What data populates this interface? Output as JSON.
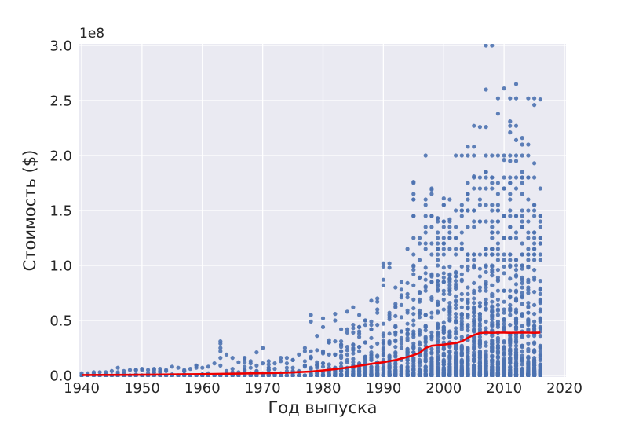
{
  "figure": {
    "background_color": "#ffffff",
    "axes_background_color": "#eaeaf2",
    "grid_color": "#ffffff",
    "text_color": "#262626"
  },
  "chart_data": {
    "type": "scatter",
    "title": "",
    "xlabel": "Год выпуска",
    "ylabel": "Стоимость ($)",
    "y_offset_label": "1e8",
    "xlim": [
      1939.6,
      2020.3
    ],
    "ylim_1e8": [
      0.0,
      3.0
    ],
    "xticks": [
      "1940",
      "1950",
      "1960",
      "1970",
      "1980",
      "1990",
      "2000",
      "2010",
      "2020"
    ],
    "ytick_labels_1e8": [
      "0.0",
      "0.5",
      "1.0",
      "1.5",
      "2.0",
      "2.5",
      "3.0"
    ],
    "grid": true,
    "legend": "none",
    "point_color": "#4c72b0",
    "line_color": "#ee0000",
    "marker_radius_px": 2.6,
    "density_exponent": 8,
    "scatter_columns_year_count_max1e8": [
      [
        1940,
        6,
        0.02
      ],
      [
        1941,
        5,
        0.02
      ],
      [
        1942,
        6,
        0.03
      ],
      [
        1943,
        7,
        0.03
      ],
      [
        1944,
        6,
        0.03
      ],
      [
        1945,
        5,
        0.04
      ],
      [
        1946,
        8,
        0.07
      ],
      [
        1947,
        7,
        0.04
      ],
      [
        1948,
        8,
        0.05
      ],
      [
        1949,
        8,
        0.05
      ],
      [
        1950,
        9,
        0.06
      ],
      [
        1951,
        8,
        0.05
      ],
      [
        1952,
        8,
        0.06
      ],
      [
        1953,
        10,
        0.06
      ],
      [
        1954,
        8,
        0.05
      ],
      [
        1955,
        10,
        0.08
      ],
      [
        1956,
        9,
        0.07
      ],
      [
        1957,
        8,
        0.05
      ],
      [
        1958,
        8,
        0.06
      ],
      [
        1959,
        10,
        0.09
      ],
      [
        1960,
        10,
        0.07
      ],
      [
        1961,
        11,
        0.08
      ],
      [
        1962,
        12,
        0.11
      ],
      [
        1963,
        14,
        0.31
      ],
      [
        1964,
        13,
        0.19
      ],
      [
        1965,
        12,
        0.16
      ],
      [
        1966,
        12,
        0.12
      ],
      [
        1967,
        13,
        0.16
      ],
      [
        1968,
        13,
        0.13
      ],
      [
        1969,
        14,
        0.21
      ],
      [
        1970,
        14,
        0.25
      ],
      [
        1971,
        13,
        0.13
      ],
      [
        1972,
        13,
        0.11
      ],
      [
        1973,
        14,
        0.16
      ],
      [
        1974,
        14,
        0.16
      ],
      [
        1975,
        14,
        0.14
      ],
      [
        1976,
        16,
        0.19
      ],
      [
        1977,
        17,
        0.25
      ],
      [
        1978,
        20,
        0.55
      ],
      [
        1979,
        20,
        0.36
      ],
      [
        1980,
        28,
        0.52
      ],
      [
        1981,
        30,
        0.32
      ],
      [
        1982,
        34,
        0.56
      ],
      [
        1983,
        36,
        0.42
      ],
      [
        1984,
        40,
        0.58
      ],
      [
        1985,
        45,
        0.62
      ],
      [
        1986,
        48,
        0.55
      ],
      [
        1987,
        52,
        0.5
      ],
      [
        1988,
        58,
        0.68
      ],
      [
        1989,
        62,
        0.7
      ],
      [
        1990,
        70,
        1.02
      ],
      [
        1991,
        75,
        1.02
      ],
      [
        1992,
        80,
        0.8
      ],
      [
        1993,
        88,
        0.85
      ],
      [
        1994,
        95,
        1.15
      ],
      [
        1995,
        105,
        1.76
      ],
      [
        1996,
        115,
        1.25
      ],
      [
        1997,
        125,
        1.6
      ],
      [
        1998,
        130,
        1.7
      ],
      [
        1999,
        135,
        1.43
      ],
      [
        2000,
        140,
        1.61
      ],
      [
        2001,
        145,
        1.42
      ],
      [
        2002,
        150,
        1.5
      ],
      [
        2003,
        150,
        1.55
      ],
      [
        2004,
        155,
        1.65
      ],
      [
        2005,
        155,
        1.81
      ],
      [
        2006,
        160,
        1.8
      ],
      [
        2007,
        160,
        1.85
      ],
      [
        2008,
        160,
        1.8
      ],
      [
        2009,
        160,
        1.75
      ],
      [
        2010,
        165,
        1.8
      ],
      [
        2011,
        165,
        1.8
      ],
      [
        2012,
        165,
        1.8
      ],
      [
        2013,
        165,
        1.85
      ],
      [
        2014,
        165,
        1.8
      ],
      [
        2015,
        165,
        1.8
      ],
      [
        2016,
        150,
        1.7
      ]
    ],
    "outlier_points_year_value1e8": [
      [
        1963,
        0.29
      ],
      [
        1963,
        0.25
      ],
      [
        1963,
        0.22
      ],
      [
        1995,
        1.75
      ],
      [
        1997,
        2.0
      ],
      [
        1998,
        1.69
      ],
      [
        1999,
        1.43
      ],
      [
        2001,
        1.6
      ],
      [
        2002,
        2.0
      ],
      [
        2003,
        2.0
      ],
      [
        2003,
        1.5
      ],
      [
        2004,
        2.0
      ],
      [
        2004,
        2.08
      ],
      [
        2004,
        1.75
      ],
      [
        2004,
        1.65
      ],
      [
        2005,
        2.27
      ],
      [
        2005,
        2.08
      ],
      [
        2005,
        2.0
      ],
      [
        2005,
        1.5
      ],
      [
        2006,
        2.26
      ],
      [
        2007,
        3.0
      ],
      [
        2007,
        2.6
      ],
      [
        2007,
        2.26
      ],
      [
        2007,
        2.0
      ],
      [
        2008,
        3.0
      ],
      [
        2008,
        2.0
      ],
      [
        2009,
        2.52
      ],
      [
        2009,
        2.38
      ],
      [
        2009,
        2.0
      ],
      [
        2010,
        2.61
      ],
      [
        2010,
        2.0
      ],
      [
        2010,
        1.96
      ],
      [
        2011,
        2.52
      ],
      [
        2011,
        2.31
      ],
      [
        2011,
        2.27
      ],
      [
        2011,
        2.21
      ],
      [
        2011,
        2.0
      ],
      [
        2011,
        1.95
      ],
      [
        2012,
        2.65
      ],
      [
        2012,
        2.52
      ],
      [
        2012,
        2.27
      ],
      [
        2012,
        2.14
      ],
      [
        2012,
        2.0
      ],
      [
        2012,
        1.95
      ],
      [
        2013,
        2.16
      ],
      [
        2013,
        2.1
      ],
      [
        2013,
        2.0
      ],
      [
        2014,
        2.52
      ],
      [
        2014,
        2.1
      ],
      [
        2014,
        2.0
      ],
      [
        2015,
        2.52
      ],
      [
        2015,
        2.46
      ],
      [
        2015,
        1.93
      ],
      [
        2016,
        2.51
      ]
    ],
    "mean_line_year_value1e8": [
      [
        1940,
        0.004
      ],
      [
        1944,
        0.005
      ],
      [
        1948,
        0.006
      ],
      [
        1952,
        0.008
      ],
      [
        1956,
        0.01
      ],
      [
        1960,
        0.012
      ],
      [
        1964,
        0.016
      ],
      [
        1968,
        0.019
      ],
      [
        1970,
        0.021
      ],
      [
        1972,
        0.023
      ],
      [
        1974,
        0.026
      ],
      [
        1976,
        0.031
      ],
      [
        1978,
        0.036
      ],
      [
        1980,
        0.046
      ],
      [
        1982,
        0.057
      ],
      [
        1984,
        0.071
      ],
      [
        1986,
        0.088
      ],
      [
        1988,
        0.106
      ],
      [
        1990,
        0.12
      ],
      [
        1992,
        0.14
      ],
      [
        1994,
        0.168
      ],
      [
        1995,
        0.185
      ],
      [
        1996,
        0.205
      ],
      [
        1997,
        0.25
      ],
      [
        1998,
        0.27
      ],
      [
        1999,
        0.276
      ],
      [
        2000,
        0.281
      ],
      [
        2001,
        0.288
      ],
      [
        2002,
        0.295
      ],
      [
        2003,
        0.31
      ],
      [
        2004,
        0.343
      ],
      [
        2005,
        0.368
      ],
      [
        2006,
        0.386
      ],
      [
        2007,
        0.39
      ],
      [
        2008,
        0.388
      ],
      [
        2009,
        0.389
      ],
      [
        2010,
        0.39
      ],
      [
        2011,
        0.388
      ],
      [
        2012,
        0.389
      ],
      [
        2013,
        0.39
      ],
      [
        2014,
        0.389
      ],
      [
        2015,
        0.388
      ],
      [
        2016,
        0.39
      ]
    ]
  }
}
